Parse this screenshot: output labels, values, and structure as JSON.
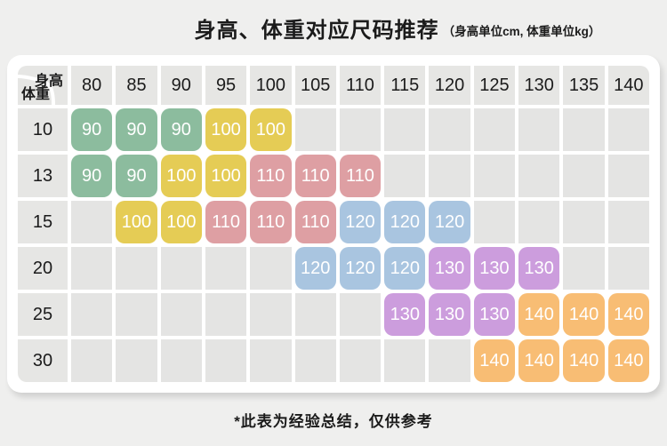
{
  "title": {
    "main": "身高、体重对应尺码推荐",
    "unit_note": "（身高单位cm, 体重单位kg）"
  },
  "footnote": "*此表为经验总结，仅供参考",
  "colors": {
    "green": "#8cbc9e",
    "yellow": "#e5cc55",
    "pink": "#de9fa3",
    "blue": "#a9c5e0",
    "purple": "#cc9ddd",
    "orange": "#f8bd74"
  },
  "chart_data": {
    "type": "table",
    "title": "身高、体重对应尺码推荐",
    "legend_note": "（身高单位cm, 体重单位kg）",
    "corner": {
      "top": "身高",
      "bottom": "体重"
    },
    "x_categories_heights_cm": [
      "80",
      "85",
      "90",
      "95",
      "100",
      "105",
      "110",
      "115",
      "120",
      "125",
      "130",
      "135",
      "140"
    ],
    "rows": [
      {
        "weight_kg": "10",
        "cells": [
          {
            "size": "90",
            "color": "green"
          },
          {
            "size": "90",
            "color": "green"
          },
          {
            "size": "90",
            "color": "green"
          },
          {
            "size": "100",
            "color": "yellow"
          },
          {
            "size": "100",
            "color": "yellow"
          },
          null,
          null,
          null,
          null,
          null,
          null,
          null,
          null
        ]
      },
      {
        "weight_kg": "13",
        "cells": [
          {
            "size": "90",
            "color": "green"
          },
          {
            "size": "90",
            "color": "green"
          },
          {
            "size": "100",
            "color": "yellow"
          },
          {
            "size": "100",
            "color": "yellow"
          },
          {
            "size": "110",
            "color": "pink"
          },
          {
            "size": "110",
            "color": "pink"
          },
          {
            "size": "110",
            "color": "pink"
          },
          null,
          null,
          null,
          null,
          null,
          null
        ]
      },
      {
        "weight_kg": "15",
        "cells": [
          null,
          {
            "size": "100",
            "color": "yellow"
          },
          {
            "size": "100",
            "color": "yellow"
          },
          {
            "size": "110",
            "color": "pink"
          },
          {
            "size": "110",
            "color": "pink"
          },
          {
            "size": "110",
            "color": "pink"
          },
          {
            "size": "120",
            "color": "blue"
          },
          {
            "size": "120",
            "color": "blue"
          },
          {
            "size": "120",
            "color": "blue"
          },
          null,
          null,
          null,
          null
        ]
      },
      {
        "weight_kg": "20",
        "cells": [
          null,
          null,
          null,
          null,
          null,
          {
            "size": "120",
            "color": "blue"
          },
          {
            "size": "120",
            "color": "blue"
          },
          {
            "size": "120",
            "color": "blue"
          },
          {
            "size": "130",
            "color": "purple"
          },
          {
            "size": "130",
            "color": "purple"
          },
          {
            "size": "130",
            "color": "purple"
          },
          null,
          null
        ]
      },
      {
        "weight_kg": "25",
        "cells": [
          null,
          null,
          null,
          null,
          null,
          null,
          null,
          {
            "size": "130",
            "color": "purple"
          },
          {
            "size": "130",
            "color": "purple"
          },
          {
            "size": "130",
            "color": "purple"
          },
          {
            "size": "140",
            "color": "orange"
          },
          {
            "size": "140",
            "color": "orange"
          },
          {
            "size": "140",
            "color": "orange"
          }
        ]
      },
      {
        "weight_kg": "30",
        "cells": [
          null,
          null,
          null,
          null,
          null,
          null,
          null,
          null,
          null,
          {
            "size": "140",
            "color": "orange"
          },
          {
            "size": "140",
            "color": "orange"
          },
          {
            "size": "140",
            "color": "orange"
          },
          {
            "size": "140",
            "color": "orange"
          }
        ]
      }
    ]
  }
}
